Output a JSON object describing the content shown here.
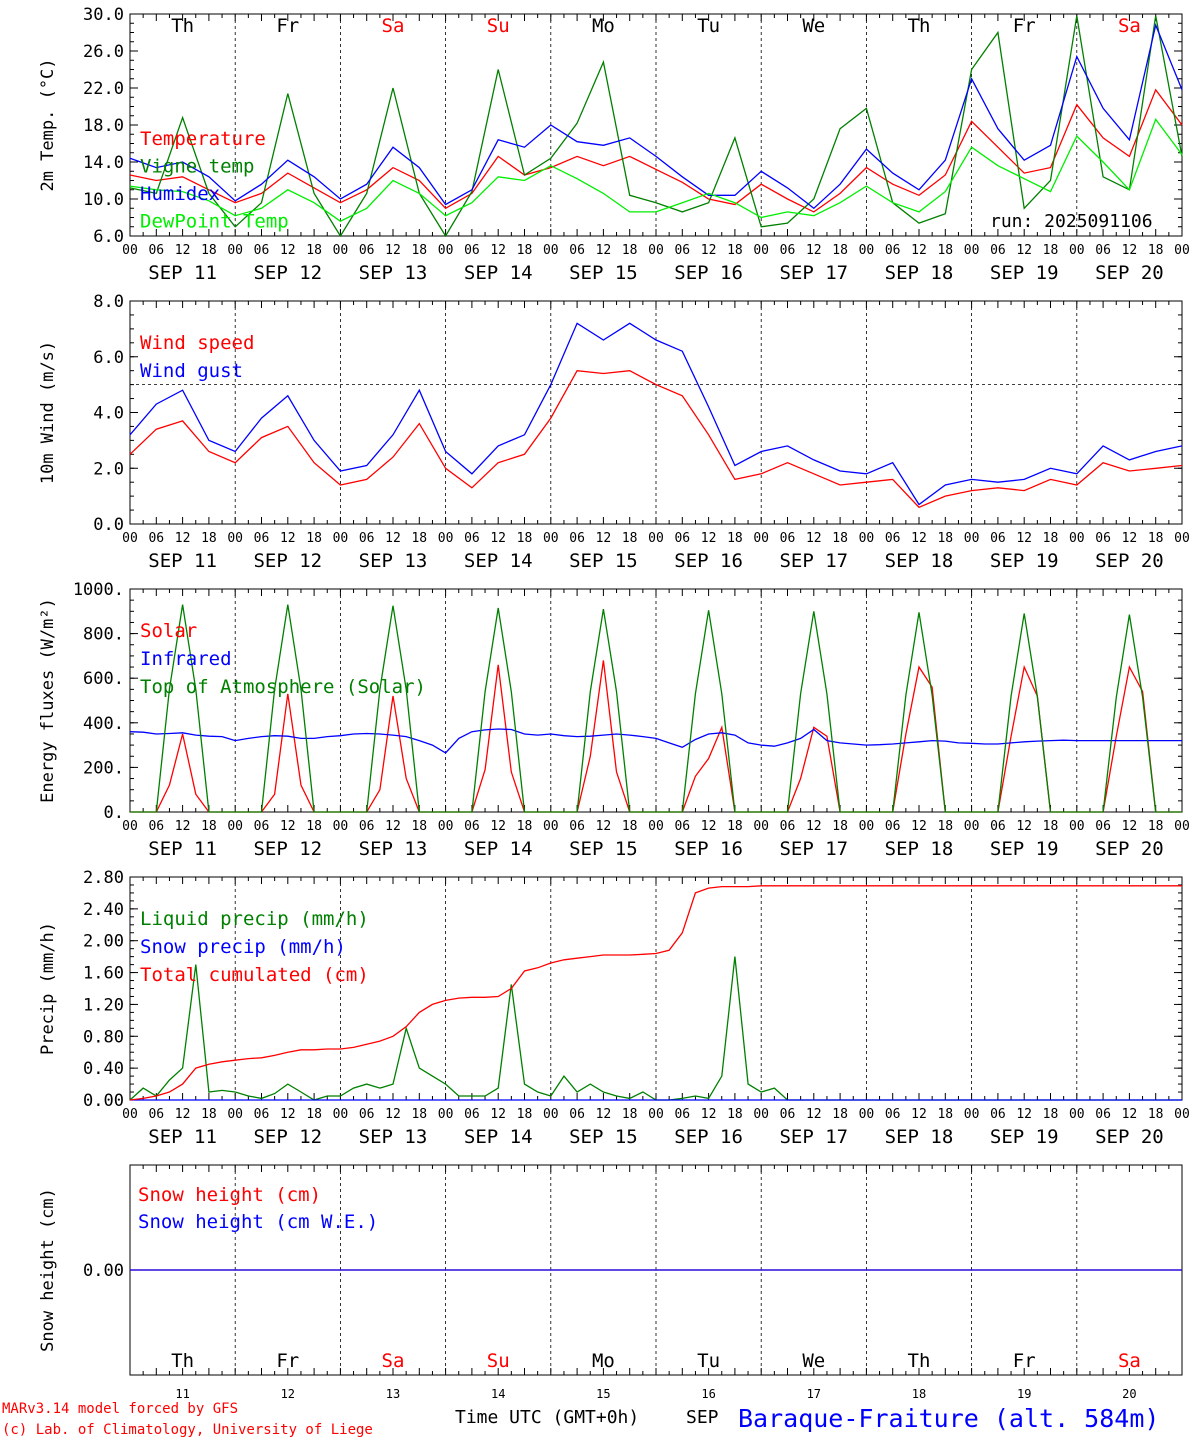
{
  "days": [
    "Th",
    "Fr",
    "Sa",
    "Su",
    "Mo",
    "Tu",
    "We",
    "Th",
    "Fr",
    "Sa"
  ],
  "weekend_days": [
    2,
    3,
    9
  ],
  "dates": [
    "SEP 11",
    "SEP 12",
    "SEP 13",
    "SEP 14",
    "SEP 15",
    "SEP 16",
    "SEP 17",
    "SEP 18",
    "SEP 19",
    "SEP 20"
  ],
  "day_numbers": [
    "11",
    "12",
    "13",
    "14",
    "15",
    "16",
    "17",
    "18",
    "19",
    "20"
  ],
  "hour_ticks": [
    "00",
    "06",
    "12",
    "18"
  ],
  "hour_tick_end": "00",
  "colors": {
    "red": "#ff0000",
    "green": "#008000",
    "blue": "#0000ff",
    "lightgreen": "#00ee00",
    "axis": "#000000"
  },
  "footer": {
    "model": "MARv3.14 model forced by GFS",
    "copyright": "(c) Lab. of Climatology, University of Liege",
    "time_label": "Time UTC (GMT+0h)",
    "month": "SEP",
    "station": "Baraque-Fraiture (alt. 584m)"
  },
  "chart_data": [
    {
      "type": "line",
      "ylabel": "2m Temp. (°C)",
      "ylim": [
        6.0,
        30.0
      ],
      "yticks": [
        "6.0",
        "10.0",
        "14.0",
        "18.0",
        "22.0",
        "26.0",
        "30.0"
      ],
      "annotation": "run: 2025091106",
      "x_hours": [
        0,
        6,
        12,
        18,
        24,
        30,
        36,
        42,
        48,
        54,
        60,
        66,
        72,
        78,
        84,
        90,
        96,
        102,
        108,
        114,
        120,
        126,
        132,
        138,
        144,
        150,
        156,
        162,
        168,
        174,
        180,
        186,
        192,
        198,
        204,
        210,
        216,
        222,
        228,
        234,
        240
      ],
      "series": [
        {
          "name": "Temperature",
          "color": "red",
          "values": [
            12.6,
            12.0,
            12.4,
            11.0,
            9.6,
            10.6,
            12.8,
            11.2,
            9.6,
            11.0,
            13.4,
            12.0,
            9.0,
            10.6,
            14.6,
            12.6,
            13.4,
            14.6,
            13.6,
            14.6,
            13.2,
            11.8,
            10.0,
            9.4,
            11.6,
            10.0,
            8.6,
            10.6,
            13.4,
            11.6,
            10.4,
            12.6,
            18.4,
            15.6,
            12.8,
            13.4,
            20.2,
            16.6,
            14.6,
            21.8,
            18.0
          ]
        },
        {
          "name": "Vigne temp",
          "color": "green",
          "values": [
            11.2,
            10.6,
            18.8,
            10.6,
            7.0,
            9.6,
            21.4,
            10.6,
            6.0,
            10.6,
            22.0,
            10.6,
            6.0,
            10.8,
            24.0,
            12.6,
            14.4,
            18.2,
            24.8,
            10.4,
            9.6,
            8.6,
            9.6,
            16.6,
            7.0,
            7.4,
            10.0,
            17.6,
            19.8,
            9.6,
            7.4,
            8.4,
            24.0,
            28.0,
            9.0,
            12.0,
            29.8,
            12.4,
            11.0,
            29.8,
            14.6
          ]
        },
        {
          "name": "Humidex",
          "color": "blue",
          "values": [
            14.4,
            13.4,
            14.0,
            12.4,
            9.8,
            11.6,
            14.2,
            12.4,
            10.0,
            11.6,
            15.6,
            13.4,
            9.4,
            11.0,
            16.4,
            15.6,
            18.0,
            16.2,
            15.8,
            16.6,
            14.6,
            12.4,
            10.4,
            10.4,
            13.0,
            11.2,
            9.0,
            11.6,
            15.4,
            12.8,
            11.0,
            14.2,
            23.0,
            17.6,
            14.2,
            15.8,
            25.4,
            19.8,
            16.4,
            28.8,
            21.8
          ]
        },
        {
          "name": "DewPoint Temp",
          "color": "lightgreen",
          "values": [
            11.4,
            11.0,
            10.8,
            9.8,
            8.2,
            9.0,
            11.0,
            9.6,
            7.6,
            9.0,
            12.0,
            10.6,
            8.2,
            9.6,
            12.4,
            12.0,
            13.6,
            12.2,
            10.6,
            8.6,
            8.6,
            9.6,
            10.6,
            9.6,
            8.0,
            8.6,
            8.2,
            9.6,
            11.4,
            9.6,
            8.6,
            10.8,
            15.6,
            13.6,
            12.2,
            10.8,
            16.8,
            14.0,
            11.0,
            18.6,
            14.8
          ]
        }
      ]
    },
    {
      "type": "line",
      "ylabel": "10m Wind (m/s)",
      "ylim": [
        0.0,
        8.0
      ],
      "yticks": [
        "0.0",
        "2.0",
        "4.0",
        "6.0",
        "8.0"
      ],
      "reference_line": 5.0,
      "x_hours": [
        0,
        6,
        12,
        18,
        24,
        30,
        36,
        42,
        48,
        54,
        60,
        66,
        72,
        78,
        84,
        90,
        96,
        102,
        108,
        114,
        120,
        126,
        132,
        138,
        144,
        150,
        156,
        162,
        168,
        174,
        180,
        186,
        192,
        198,
        204,
        210,
        216,
        222,
        228,
        234,
        240
      ],
      "series": [
        {
          "name": "Wind speed",
          "color": "red",
          "values": [
            2.5,
            3.4,
            3.7,
            2.6,
            2.2,
            3.1,
            3.5,
            2.2,
            1.4,
            1.6,
            2.4,
            3.6,
            2.0,
            1.3,
            2.2,
            2.5,
            3.8,
            5.5,
            5.4,
            5.5,
            5.0,
            4.6,
            3.2,
            1.6,
            1.8,
            2.2,
            1.8,
            1.4,
            1.5,
            1.6,
            0.6,
            1.0,
            1.2,
            1.3,
            1.2,
            1.6,
            1.4,
            2.2,
            1.9,
            2.0,
            2.1
          ]
        },
        {
          "name": "Wind gust",
          "color": "blue",
          "values": [
            3.2,
            4.3,
            4.8,
            3.0,
            2.6,
            3.8,
            4.6,
            3.0,
            1.9,
            2.1,
            3.2,
            4.8,
            2.6,
            1.8,
            2.8,
            3.2,
            5.0,
            7.2,
            6.6,
            7.2,
            6.6,
            6.2,
            4.2,
            2.1,
            2.6,
            2.8,
            2.3,
            1.9,
            1.8,
            2.2,
            0.7,
            1.4,
            1.6,
            1.5,
            1.6,
            2.0,
            1.8,
            2.8,
            2.3,
            2.6,
            2.8
          ]
        }
      ]
    },
    {
      "type": "line",
      "ylabel": "Energy fluxes (W/m²)",
      "ylim": [
        0,
        1000
      ],
      "yticks": [
        "0.",
        "200.",
        "400.",
        "600.",
        "800.",
        "1000."
      ],
      "x_hours": [
        0,
        3,
        6,
        9,
        12,
        15,
        18,
        21,
        24,
        27,
        30,
        33,
        36,
        39,
        42,
        45,
        48,
        51,
        54,
        57,
        60,
        63,
        66,
        69,
        72,
        75,
        78,
        81,
        84,
        87,
        90,
        93,
        96,
        99,
        102,
        105,
        108,
        111,
        114,
        117,
        120,
        123,
        126,
        129,
        132,
        135,
        138,
        141,
        144,
        147,
        150,
        153,
        156,
        159,
        162,
        165,
        168,
        171,
        174,
        177,
        180,
        183,
        186,
        189,
        192,
        195,
        198,
        201,
        204,
        207,
        210,
        213,
        216,
        219,
        222,
        225,
        228,
        231,
        234,
        237,
        240
      ],
      "series": [
        {
          "name": "Solar",
          "color": "red",
          "values": [
            0,
            0,
            0,
            120,
            350,
            80,
            0,
            0,
            0,
            0,
            0,
            80,
            530,
            120,
            0,
            0,
            0,
            0,
            0,
            100,
            520,
            150,
            0,
            0,
            0,
            0,
            0,
            190,
            660,
            180,
            0,
            0,
            0,
            0,
            0,
            250,
            680,
            180,
            0,
            0,
            0,
            0,
            0,
            160,
            240,
            380,
            0,
            0,
            0,
            0,
            0,
            150,
            380,
            340,
            0,
            0,
            0,
            0,
            0,
            350,
            650,
            560,
            0,
            0,
            0,
            0,
            0,
            340,
            650,
            520,
            0,
            0,
            0,
            0,
            0,
            340,
            650,
            540,
            0,
            0,
            0
          ]
        },
        {
          "name": "Infrared",
          "color": "blue",
          "values": [
            360,
            358,
            350,
            352,
            355,
            345,
            340,
            338,
            320,
            330,
            338,
            342,
            340,
            330,
            330,
            338,
            342,
            350,
            352,
            350,
            345,
            338,
            320,
            300,
            265,
            330,
            360,
            368,
            372,
            370,
            350,
            345,
            350,
            342,
            338,
            340,
            345,
            350,
            345,
            338,
            330,
            310,
            290,
            325,
            350,
            355,
            345,
            310,
            300,
            295,
            310,
            330,
            370,
            320,
            310,
            305,
            300,
            302,
            305,
            310,
            315,
            320,
            318,
            310,
            308,
            305,
            305,
            310,
            315,
            318,
            320,
            322,
            320,
            320,
            320,
            320,
            320,
            320,
            320,
            320,
            320
          ]
        },
        {
          "name": "Top of Atmosphere (Solar)",
          "color": "green",
          "values": [
            0,
            0,
            0,
            550,
            930,
            550,
            0,
            0,
            0,
            0,
            0,
            550,
            930,
            550,
            0,
            0,
            0,
            0,
            0,
            550,
            925,
            550,
            0,
            0,
            0,
            0,
            0,
            540,
            915,
            540,
            0,
            0,
            0,
            0,
            0,
            540,
            910,
            540,
            0,
            0,
            0,
            0,
            0,
            530,
            905,
            530,
            0,
            0,
            0,
            0,
            0,
            530,
            900,
            530,
            0,
            0,
            0,
            0,
            0,
            525,
            895,
            525,
            0,
            0,
            0,
            0,
            0,
            520,
            890,
            520,
            0,
            0,
            0,
            0,
            0,
            515,
            885,
            515,
            0,
            0,
            0
          ]
        }
      ]
    },
    {
      "type": "line",
      "ylabel": "Precip (mm/h)",
      "ylim": [
        0.0,
        2.8
      ],
      "yticks": [
        "0.00",
        "0.40",
        "0.80",
        "1.20",
        "1.60",
        "2.00",
        "2.40",
        "2.80"
      ],
      "x_hours": [
        0,
        3,
        6,
        9,
        12,
        15,
        18,
        21,
        24,
        27,
        30,
        33,
        36,
        39,
        42,
        45,
        48,
        51,
        54,
        57,
        60,
        63,
        66,
        69,
        72,
        75,
        78,
        81,
        84,
        87,
        90,
        93,
        96,
        99,
        102,
        105,
        108,
        111,
        114,
        117,
        120,
        123,
        126,
        129,
        132,
        135,
        138,
        141,
        144,
        147,
        150,
        153,
        156,
        159,
        162,
        165,
        168,
        171,
        174,
        177,
        180,
        183,
        186,
        189,
        192,
        195,
        198,
        201,
        204,
        207,
        210,
        213,
        216,
        219,
        222,
        225,
        228,
        231,
        234,
        237,
        240
      ],
      "series": [
        {
          "name": "Liquid precip (mm/h)",
          "color": "green",
          "values": [
            0,
            0.15,
            0.05,
            0.25,
            0.4,
            1.7,
            0.1,
            0.12,
            0.1,
            0.05,
            0.02,
            0.08,
            0.2,
            0.1,
            0,
            0.05,
            0.05,
            0.15,
            0.2,
            0.15,
            0.2,
            0.9,
            0.4,
            0.3,
            0.2,
            0.05,
            0.05,
            0.05,
            0.15,
            1.45,
            0.2,
            0.1,
            0.05,
            0.3,
            0.1,
            0.2,
            0.1,
            0.05,
            0.02,
            0.1,
            0,
            0,
            0.02,
            0.05,
            0.02,
            0.3,
            1.8,
            0.2,
            0.1,
            0.15,
            0,
            0,
            0,
            0,
            0,
            0,
            0,
            0,
            0,
            0,
            0,
            0,
            0,
            0,
            0,
            0,
            0,
            0,
            0,
            0,
            0,
            0,
            0,
            0,
            0,
            0,
            0,
            0,
            0,
            0,
            0
          ]
        },
        {
          "name": "Snow precip (mm/h)",
          "color": "blue",
          "values": [
            0,
            0,
            0,
            0,
            0,
            0,
            0,
            0,
            0,
            0,
            0,
            0,
            0,
            0,
            0,
            0,
            0,
            0,
            0,
            0,
            0,
            0,
            0,
            0,
            0,
            0,
            0,
            0,
            0,
            0,
            0,
            0,
            0,
            0,
            0,
            0,
            0,
            0,
            0,
            0,
            0,
            0,
            0,
            0,
            0,
            0,
            0,
            0,
            0,
            0,
            0,
            0,
            0,
            0,
            0,
            0,
            0,
            0,
            0,
            0,
            0,
            0,
            0,
            0,
            0,
            0,
            0,
            0,
            0,
            0,
            0,
            0,
            0,
            0,
            0,
            0,
            0,
            0,
            0,
            0,
            0
          ]
        },
        {
          "name": "Total cumulated (cm)",
          "color": "red",
          "values": [
            0,
            0.02,
            0.05,
            0.1,
            0.2,
            0.4,
            0.45,
            0.48,
            0.5,
            0.52,
            0.53,
            0.56,
            0.6,
            0.63,
            0.63,
            0.64,
            0.64,
            0.66,
            0.7,
            0.74,
            0.8,
            0.92,
            1.1,
            1.2,
            1.25,
            1.28,
            1.29,
            1.29,
            1.3,
            1.4,
            1.62,
            1.66,
            1.72,
            1.76,
            1.78,
            1.8,
            1.82,
            1.82,
            1.82,
            1.83,
            1.84,
            1.88,
            2.1,
            2.6,
            2.66,
            2.68,
            2.68,
            2.68,
            2.69,
            2.69,
            2.69,
            2.69,
            2.69,
            2.69,
            2.69,
            2.69,
            2.69,
            2.69,
            2.69,
            2.69,
            2.69,
            2.69,
            2.69,
            2.69,
            2.69,
            2.69,
            2.69,
            2.69,
            2.69,
            2.69,
            2.69,
            2.69,
            2.69,
            2.69,
            2.69,
            2.69,
            2.69,
            2.69,
            2.69,
            2.69,
            2.69
          ]
        }
      ]
    },
    {
      "type": "line",
      "ylabel": "Snow height (cm)",
      "ylim": [
        -1.0,
        1.0
      ],
      "yticks": [
        "0.00"
      ],
      "x_hours": [
        0,
        240
      ],
      "series": [
        {
          "name": "Snow height (cm)",
          "color": "red",
          "values": [
            0,
            0
          ]
        },
        {
          "name": "Snow height (cm W.E.)",
          "color": "blue",
          "values": [
            0,
            0
          ]
        }
      ]
    }
  ]
}
